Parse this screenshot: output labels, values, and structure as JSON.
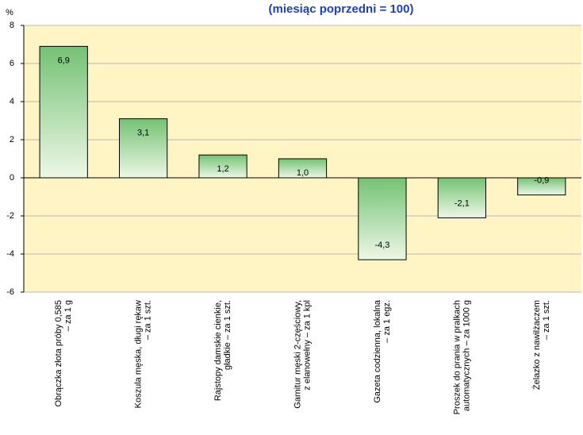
{
  "chart_data": {
    "type": "bar",
    "title": "(miesiąc poprzedni = 100)",
    "y_label": "%",
    "categories": [
      "Obrączka złota próby 0,585\n– za 1 g",
      "Koszula męska, długi rękaw\n– za 1 szt.",
      "Rajstopy damskie cienkie,\ngładkie – za 1 szt.",
      "Garnitur męski 2-częściowy,\nz elanowełny – za 1 kpl",
      "Gazeta codzienna, lokalna\n– za 1 egz.",
      "Proszek do prania w pralkach\nautomatycznych – za 1000 g",
      "Żelazko z nawilżaczem\n– za 1 szt."
    ],
    "values": [
      6.9,
      3.1,
      1.2,
      1.0,
      -4.3,
      -2.1,
      -0.9
    ],
    "value_labels": [
      "6,9",
      "3,1",
      "1,2",
      "1,0",
      "-4,3",
      "-2,1",
      "-0,9"
    ],
    "color": "#7cc47c",
    "ylim": [
      -6,
      8
    ],
    "yticks": [
      -6,
      -4,
      -2,
      0,
      2,
      4,
      6,
      8
    ],
    "grid": true
  }
}
